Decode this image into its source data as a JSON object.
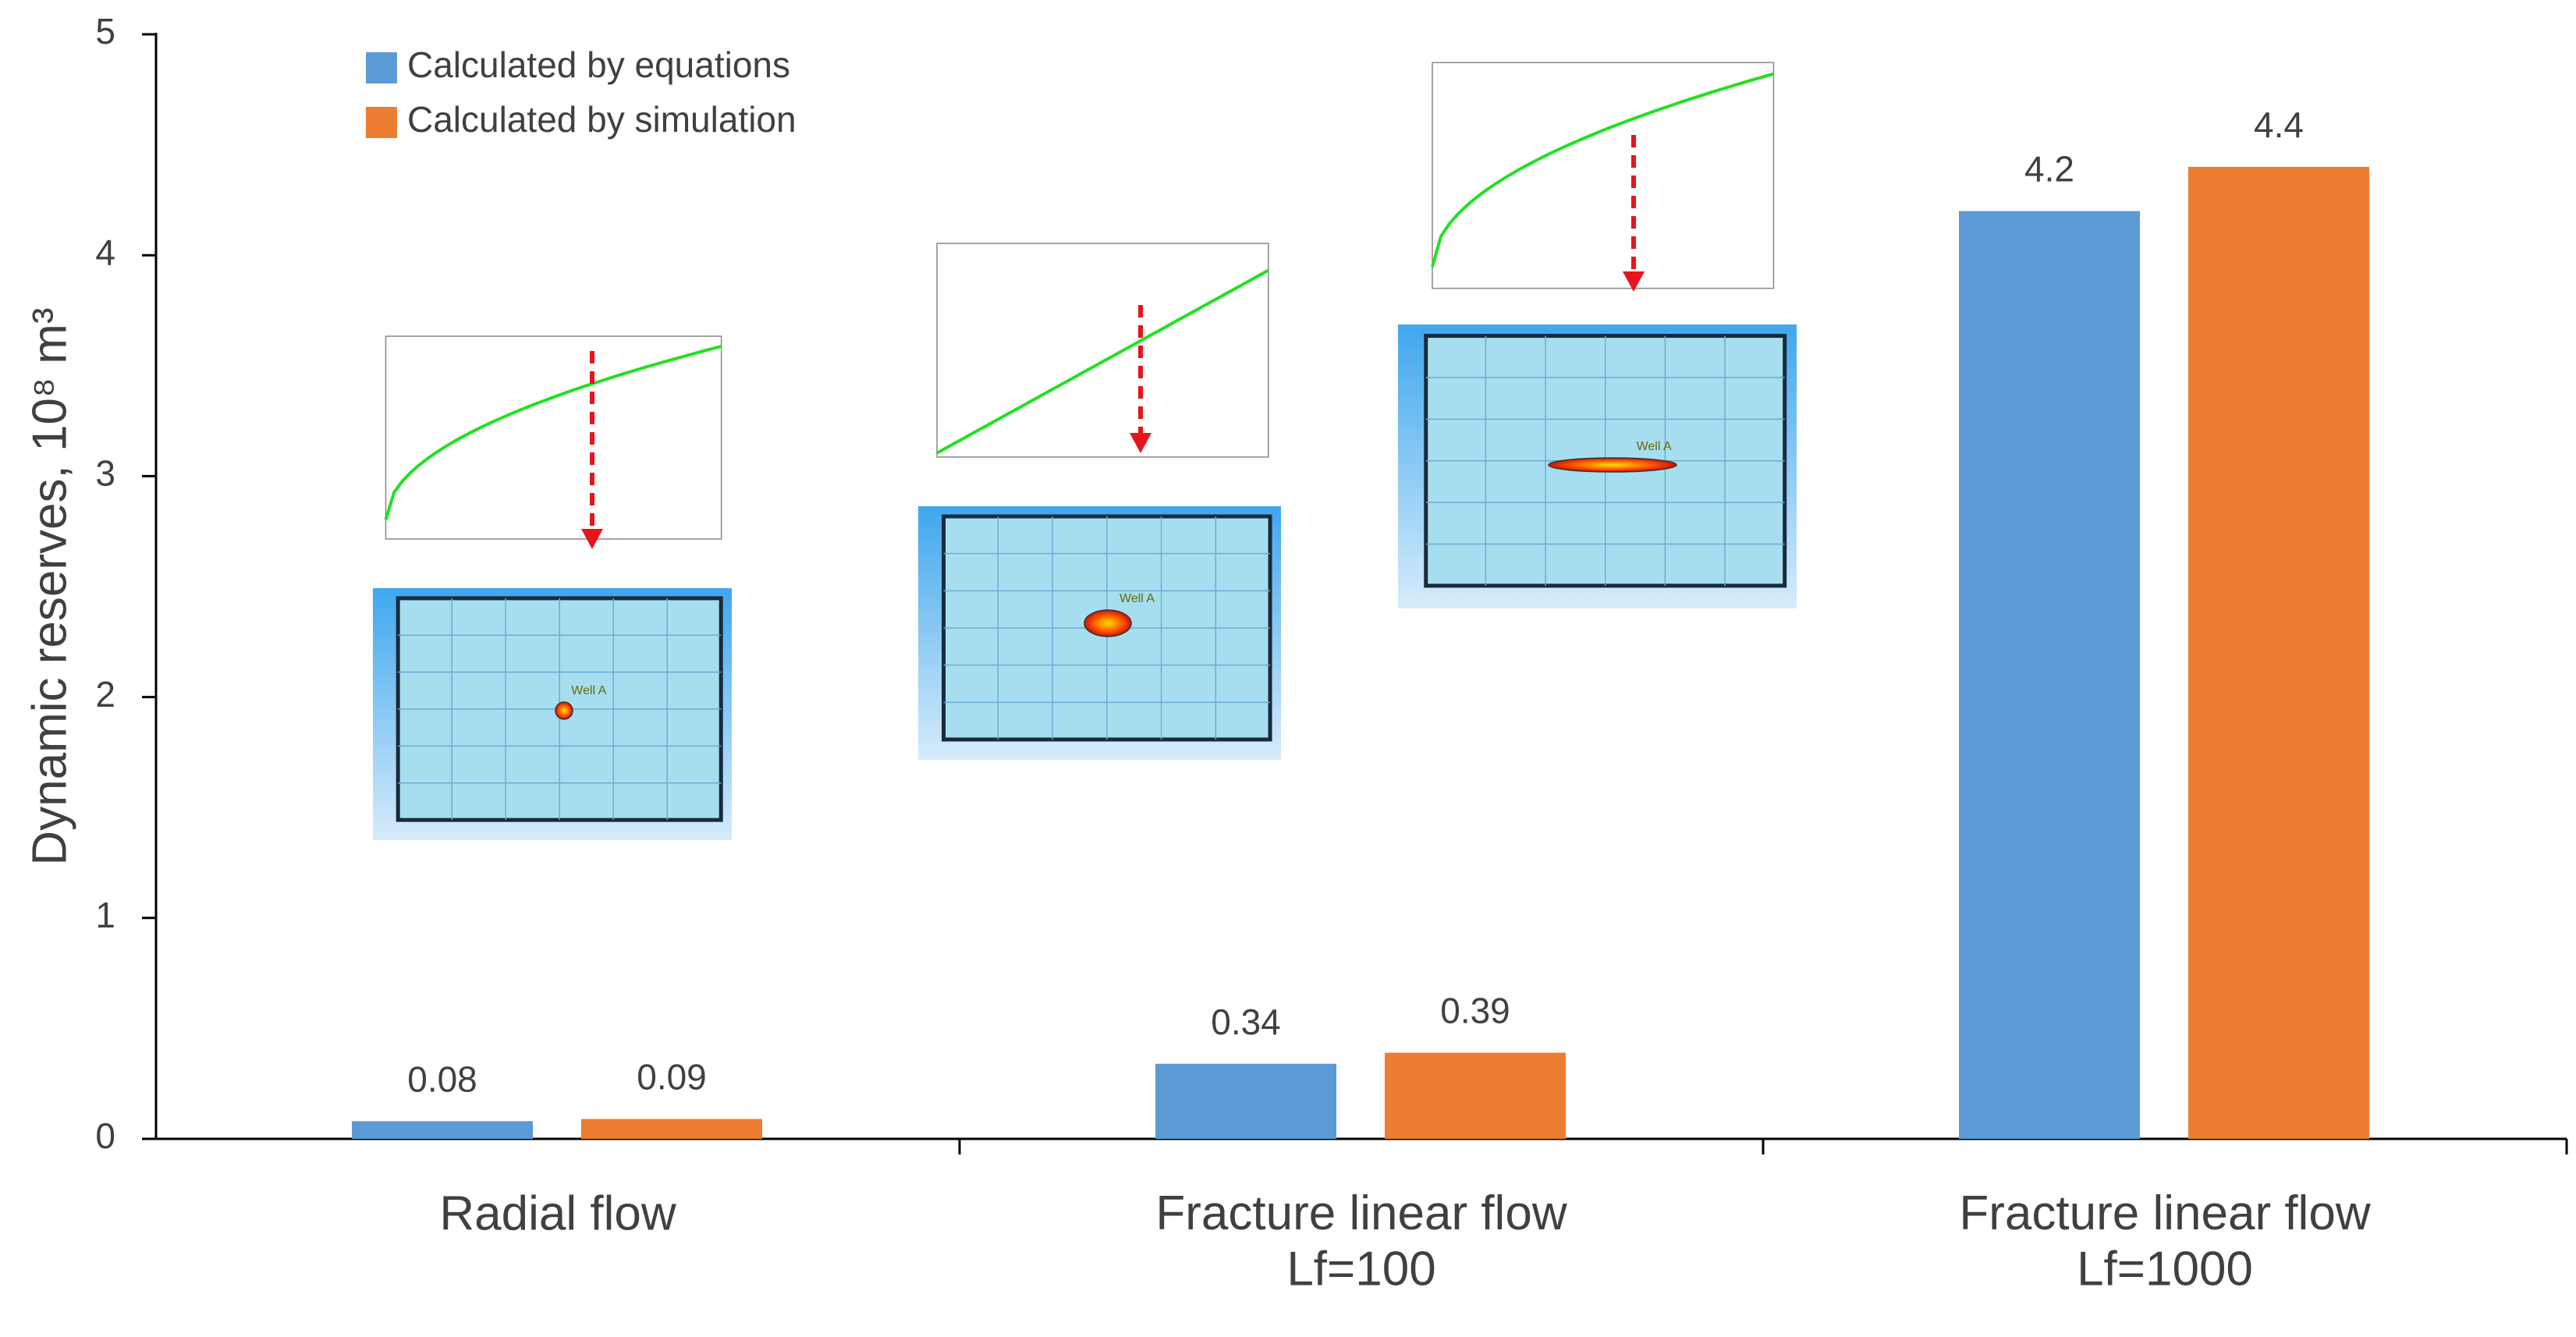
{
  "chart_data": {
    "type": "bar",
    "y_label": "Dynamic reserves, 10⁸ m³",
    "categories": [
      "Radial flow",
      "Fracture linear flow\nLf=100",
      "Fracture linear flow\nLf=1000"
    ],
    "series": [
      {
        "name": "Calculated by equations",
        "color": "#5b9bd5",
        "values": [
          0.08,
          0.34,
          4.2
        ]
      },
      {
        "name": "Calculated by simulation",
        "color": "#ed7d31",
        "values": [
          0.09,
          0.39,
          4.4
        ]
      }
    ],
    "ylim": [
      0,
      5
    ],
    "yticks": [
      0,
      1,
      2,
      3,
      4,
      5
    ],
    "legend": "top-left",
    "annotations": [
      "Well A",
      "Well A",
      "Well A"
    ]
  }
}
